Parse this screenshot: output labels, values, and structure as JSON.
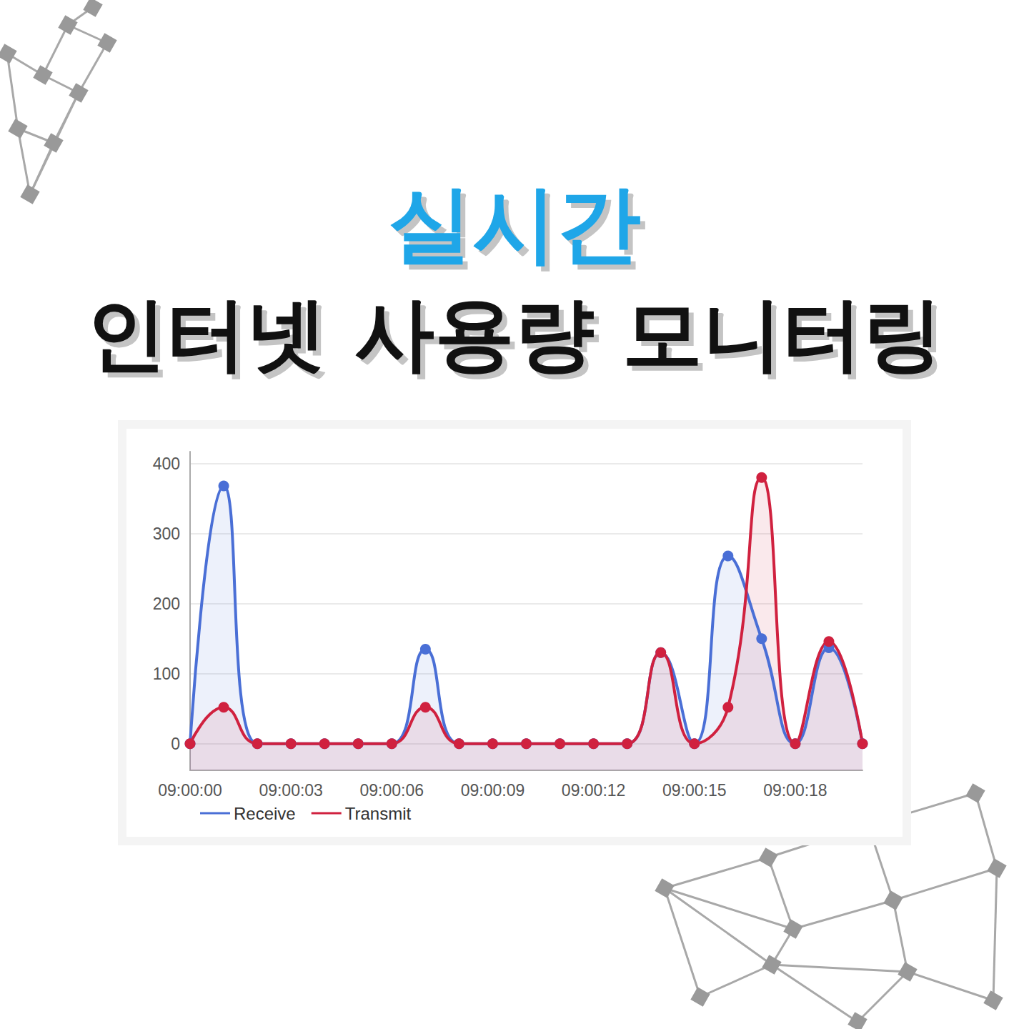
{
  "chart_data": {
    "type": "line",
    "title": "실시간",
    "subtitle": "인터넷 사용량 모니터링",
    "categories": [
      "09:00:00",
      null,
      null,
      "09:00:03",
      null,
      null,
      "09:00:06",
      null,
      null,
      "09:00:09",
      null,
      null,
      "09:00:12",
      null,
      null,
      "09:00:15",
      null,
      null,
      "09:00:18",
      null,
      null
    ],
    "series": [
      {
        "name": "Receive",
        "color": "#4a6fd6",
        "values": [
          0,
          368,
          0,
          0,
          0,
          0,
          0,
          135,
          0,
          0,
          0,
          0,
          0,
          0,
          130,
          0,
          268,
          150,
          0,
          137,
          0
        ]
      },
      {
        "name": "Transmit",
        "color": "#d0213f",
        "values": [
          0,
          52,
          0,
          0,
          0,
          0,
          0,
          52,
          0,
          0,
          0,
          0,
          0,
          0,
          130,
          0,
          52,
          380,
          0,
          146,
          0
        ]
      }
    ],
    "ylim": [
      -38,
      417
    ],
    "yticks": [
      0,
      100,
      200,
      300,
      400
    ],
    "grid": true,
    "legend": "bottom",
    "marker": "circle",
    "line_style": "smooth"
  }
}
